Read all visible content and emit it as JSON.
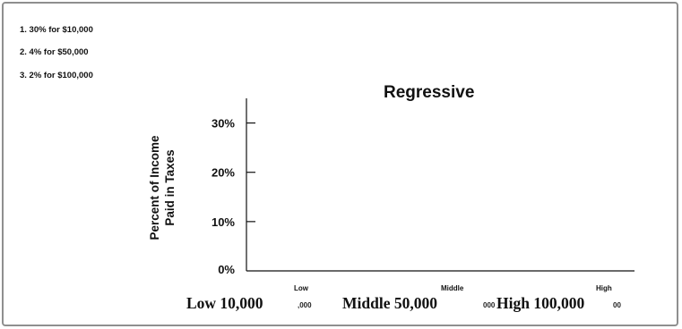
{
  "notes": [
    "1. 30% for $10,000",
    "2.  4% for $50,000",
    "3.  2% for $100,000"
  ],
  "chart_data": {
    "type": "line",
    "title": "Regressive",
    "ylabel_line1": "Percent of Income",
    "ylabel_line2": "Paid in Taxes",
    "y_ticks": [
      "0%",
      "10%",
      "20%",
      "30%"
    ],
    "y_tick_values": [
      0,
      10,
      20,
      30
    ],
    "ylim": [
      0,
      35
    ],
    "categories": [
      "Low",
      "Middle",
      "High"
    ],
    "category_labels": [
      "Low 10,000",
      "Middle 50,000",
      "High 100,000"
    ],
    "category_label_fragments": [
      ",000",
      "000",
      "00"
    ],
    "series": []
  }
}
